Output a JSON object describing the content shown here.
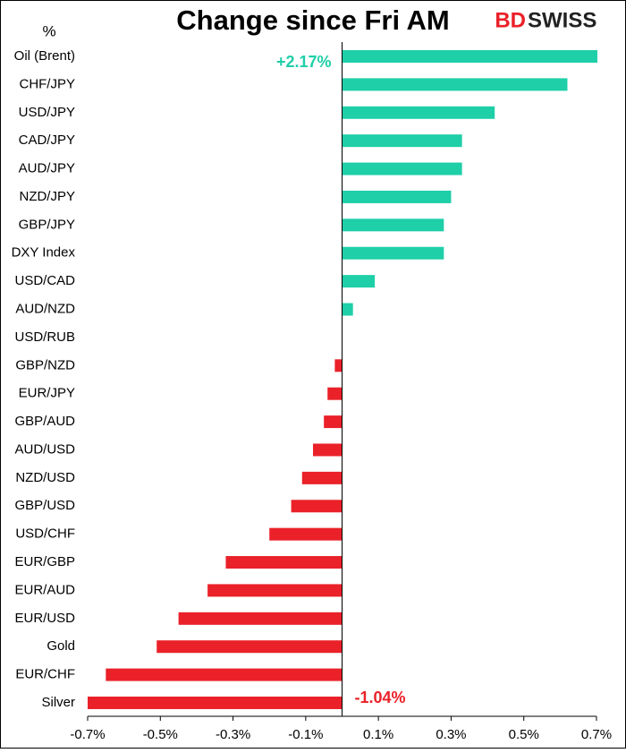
{
  "chart_data": {
    "type": "hbar",
    "title": "Change since Fri AM",
    "unit_label": "%",
    "brand": [
      "BD",
      "SWISS"
    ],
    "categories": [
      "Oil (Brent)",
      "CHF/JPY",
      "USD/JPY",
      "CAD/JPY",
      "AUD/JPY",
      "NZD/JPY",
      "GBP/JPY",
      "DXY Index",
      "USD/CAD",
      "AUD/NZD",
      "USD/RUB",
      "GBP/NZD",
      "EUR/JPY",
      "GBP/AUD",
      "AUD/USD",
      "NZD/USD",
      "GBP/USD",
      "USD/CHF",
      "EUR/GBP",
      "EUR/AUD",
      "EUR/USD",
      "Gold",
      "EUR/CHF",
      "Silver"
    ],
    "values": [
      2.17,
      0.62,
      0.42,
      0.33,
      0.33,
      0.3,
      0.28,
      0.28,
      0.09,
      0.03,
      0,
      -0.02,
      -0.04,
      -0.05,
      -0.08,
      -0.11,
      -0.14,
      -0.2,
      -0.32,
      -0.37,
      -0.45,
      -0.51,
      -0.65,
      -1.04
    ],
    "value_labels": [
      "+2.17%",
      null,
      null,
      null,
      null,
      null,
      null,
      null,
      null,
      null,
      null,
      null,
      null,
      null,
      null,
      null,
      null,
      null,
      null,
      null,
      null,
      null,
      null,
      "-1.04%"
    ],
    "positive_color": "#1ecfa8",
    "negative_color": "#ea2129",
    "xlim": [
      -0.7,
      0.7
    ],
    "xticks": [
      {
        "value": -0.7,
        "label": "-0.7%"
      },
      {
        "value": -0.5,
        "label": "-0.5%"
      },
      {
        "value": -0.3,
        "label": "-0.3%"
      },
      {
        "value": -0.1,
        "label": "-0.1%"
      },
      {
        "value": 0.1,
        "label": "0.1%"
      },
      {
        "value": 0.3,
        "label": "0.3%"
      },
      {
        "value": 0.5,
        "label": "0.5%"
      },
      {
        "value": 0.7,
        "label": "0.7%"
      }
    ],
    "grid": false
  }
}
